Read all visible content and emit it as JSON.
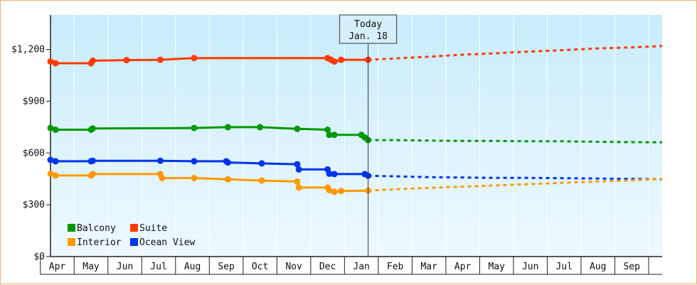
{
  "chart_data": {
    "type": "line",
    "title": "",
    "xlabel": "",
    "ylabel": "",
    "ylim": [
      0,
      1400
    ],
    "y_ticks": [
      {
        "value": 0,
        "label": "$0"
      },
      {
        "value": 300,
        "label": "$300"
      },
      {
        "value": 600,
        "label": "$600"
      },
      {
        "value": 900,
        "label": "$900"
      },
      {
        "value": 1200,
        "label": "$1,200"
      }
    ],
    "x_months": [
      "Apr",
      "May",
      "Jun",
      "Jul",
      "Aug",
      "Sep",
      "Oct",
      "Nov",
      "Dec",
      "Jan",
      "Feb",
      "Mar",
      "Apr",
      "May",
      "Jun",
      "Jul",
      "Aug",
      "Sep"
    ],
    "xlim": [
      -0.2,
      17.9
    ],
    "today": {
      "x": 9.2,
      "line1": "Today",
      "line2": "Jan. 18"
    },
    "grid": "vertical",
    "legend_position": "bottom-left",
    "series": [
      {
        "name": "Suite",
        "color": "#ff3a00",
        "actual": [
          [
            -0.2,
            1130
          ],
          [
            -0.05,
            1120
          ],
          [
            1.0,
            1120
          ],
          [
            1.05,
            1135
          ],
          [
            2.05,
            1138
          ],
          [
            3.05,
            1140
          ],
          [
            4.05,
            1150
          ],
          [
            8.0,
            1150
          ],
          [
            8.1,
            1140
          ],
          [
            8.2,
            1130
          ],
          [
            8.4,
            1140
          ],
          [
            9.2,
            1140
          ]
        ],
        "forecast": [
          [
            9.2,
            1140
          ],
          [
            10.0,
            1148
          ],
          [
            11.0,
            1158
          ],
          [
            12.0,
            1170
          ],
          [
            13.0,
            1178
          ],
          [
            14.0,
            1188
          ],
          [
            15.0,
            1196
          ],
          [
            16.0,
            1206
          ],
          [
            17.0,
            1212
          ],
          [
            17.9,
            1220
          ]
        ]
      },
      {
        "name": "Balcony",
        "color": "#009900",
        "actual": [
          [
            -0.2,
            745
          ],
          [
            -0.05,
            735
          ],
          [
            1.0,
            735
          ],
          [
            1.05,
            742
          ],
          [
            4.05,
            745
          ],
          [
            5.05,
            750
          ],
          [
            6.0,
            750
          ],
          [
            7.1,
            740
          ],
          [
            8.0,
            735
          ],
          [
            8.05,
            705
          ],
          [
            8.2,
            705
          ],
          [
            9.0,
            705
          ],
          [
            9.1,
            690
          ],
          [
            9.2,
            675
          ]
        ],
        "forecast": [
          [
            9.2,
            675
          ],
          [
            10.0,
            675
          ],
          [
            11.0,
            672
          ],
          [
            12.0,
            670
          ],
          [
            13.0,
            670
          ],
          [
            14.0,
            668
          ],
          [
            15.0,
            668
          ],
          [
            16.0,
            665
          ],
          [
            17.0,
            663
          ],
          [
            17.9,
            662
          ]
        ]
      },
      {
        "name": "Ocean View",
        "color": "#0033ee",
        "actual": [
          [
            -0.2,
            560
          ],
          [
            -0.05,
            552
          ],
          [
            1.0,
            552
          ],
          [
            1.05,
            555
          ],
          [
            3.05,
            555
          ],
          [
            4.05,
            552
          ],
          [
            5.0,
            552
          ],
          [
            5.05,
            545
          ],
          [
            6.05,
            540
          ],
          [
            7.1,
            535
          ],
          [
            7.15,
            505
          ],
          [
            8.0,
            505
          ],
          [
            8.05,
            480
          ],
          [
            8.2,
            478
          ],
          [
            9.1,
            478
          ],
          [
            9.2,
            468
          ]
        ],
        "forecast": [
          [
            9.2,
            468
          ],
          [
            10.0,
            465
          ],
          [
            11.0,
            460
          ],
          [
            12.0,
            458
          ],
          [
            13.0,
            456
          ],
          [
            14.0,
            456
          ],
          [
            15.0,
            454
          ],
          [
            16.0,
            452
          ],
          [
            17.0,
            450
          ],
          [
            17.9,
            448
          ]
        ]
      },
      {
        "name": "Interior",
        "color": "#ff9900",
        "actual": [
          [
            -0.2,
            480
          ],
          [
            -0.05,
            470
          ],
          [
            1.0,
            470
          ],
          [
            1.05,
            478
          ],
          [
            3.05,
            478
          ],
          [
            3.1,
            455
          ],
          [
            4.05,
            455
          ],
          [
            5.05,
            448
          ],
          [
            6.05,
            440
          ],
          [
            7.1,
            435
          ],
          [
            7.15,
            400
          ],
          [
            8.0,
            400
          ],
          [
            8.05,
            385
          ],
          [
            8.2,
            375
          ],
          [
            8.4,
            380
          ],
          [
            9.2,
            382
          ]
        ],
        "forecast": [
          [
            9.2,
            382
          ],
          [
            10.0,
            390
          ],
          [
            11.0,
            398
          ],
          [
            12.0,
            405
          ],
          [
            13.0,
            412
          ],
          [
            14.0,
            420
          ],
          [
            15.0,
            428
          ],
          [
            16.0,
            435
          ],
          [
            17.0,
            442
          ],
          [
            17.9,
            450
          ]
        ]
      }
    ],
    "legend": [
      {
        "name": "Balcony",
        "color": "#009900"
      },
      {
        "name": "Suite",
        "color": "#ff3a00"
      },
      {
        "name": "Interior",
        "color": "#ff9900"
      },
      {
        "name": "Ocean View",
        "color": "#0033ee"
      }
    ]
  }
}
